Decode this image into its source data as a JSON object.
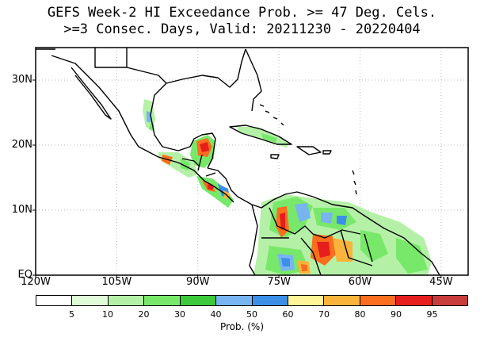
{
  "title": {
    "line1": "GEFS Week-2 HI Exceedance Prob. >= 47 Deg. Cels.",
    "line2": ">=3 Consec. Days, Valid: 20211230 - 20220404"
  },
  "map": {
    "lon_range": [
      -120,
      -40
    ],
    "lat_range": [
      0,
      35
    ],
    "lat_ticks": [
      {
        "label": "30N",
        "lat": 30
      },
      {
        "label": "20N",
        "lat": 20
      },
      {
        "label": "10N",
        "lat": 10
      },
      {
        "label": "EQ",
        "lat": 0
      }
    ],
    "lon_ticks": [
      {
        "label": "120W",
        "lon": -120
      },
      {
        "label": "105W",
        "lon": -105
      },
      {
        "label": "90W",
        "lon": -90
      },
      {
        "label": "75W",
        "lon": -75
      },
      {
        "label": "60W",
        "lon": -60
      },
      {
        "label": "45W",
        "lon": -45
      }
    ],
    "grid": true,
    "grid_color": "#bbbbbb"
  },
  "colorbar": {
    "colors": [
      "#ffffff",
      "#e0fbd8",
      "#b4f1a6",
      "#78e86a",
      "#3cc93c",
      "#78b4f0",
      "#3c8fe6",
      "#fff596",
      "#fab43c",
      "#fa6e1e",
      "#e61e1e",
      "#c83c3c"
    ],
    "labels": [
      "5",
      "10",
      "20",
      "30",
      "40",
      "50",
      "60",
      "70",
      "80",
      "90",
      "95"
    ],
    "title": "Prob. (%)"
  }
}
